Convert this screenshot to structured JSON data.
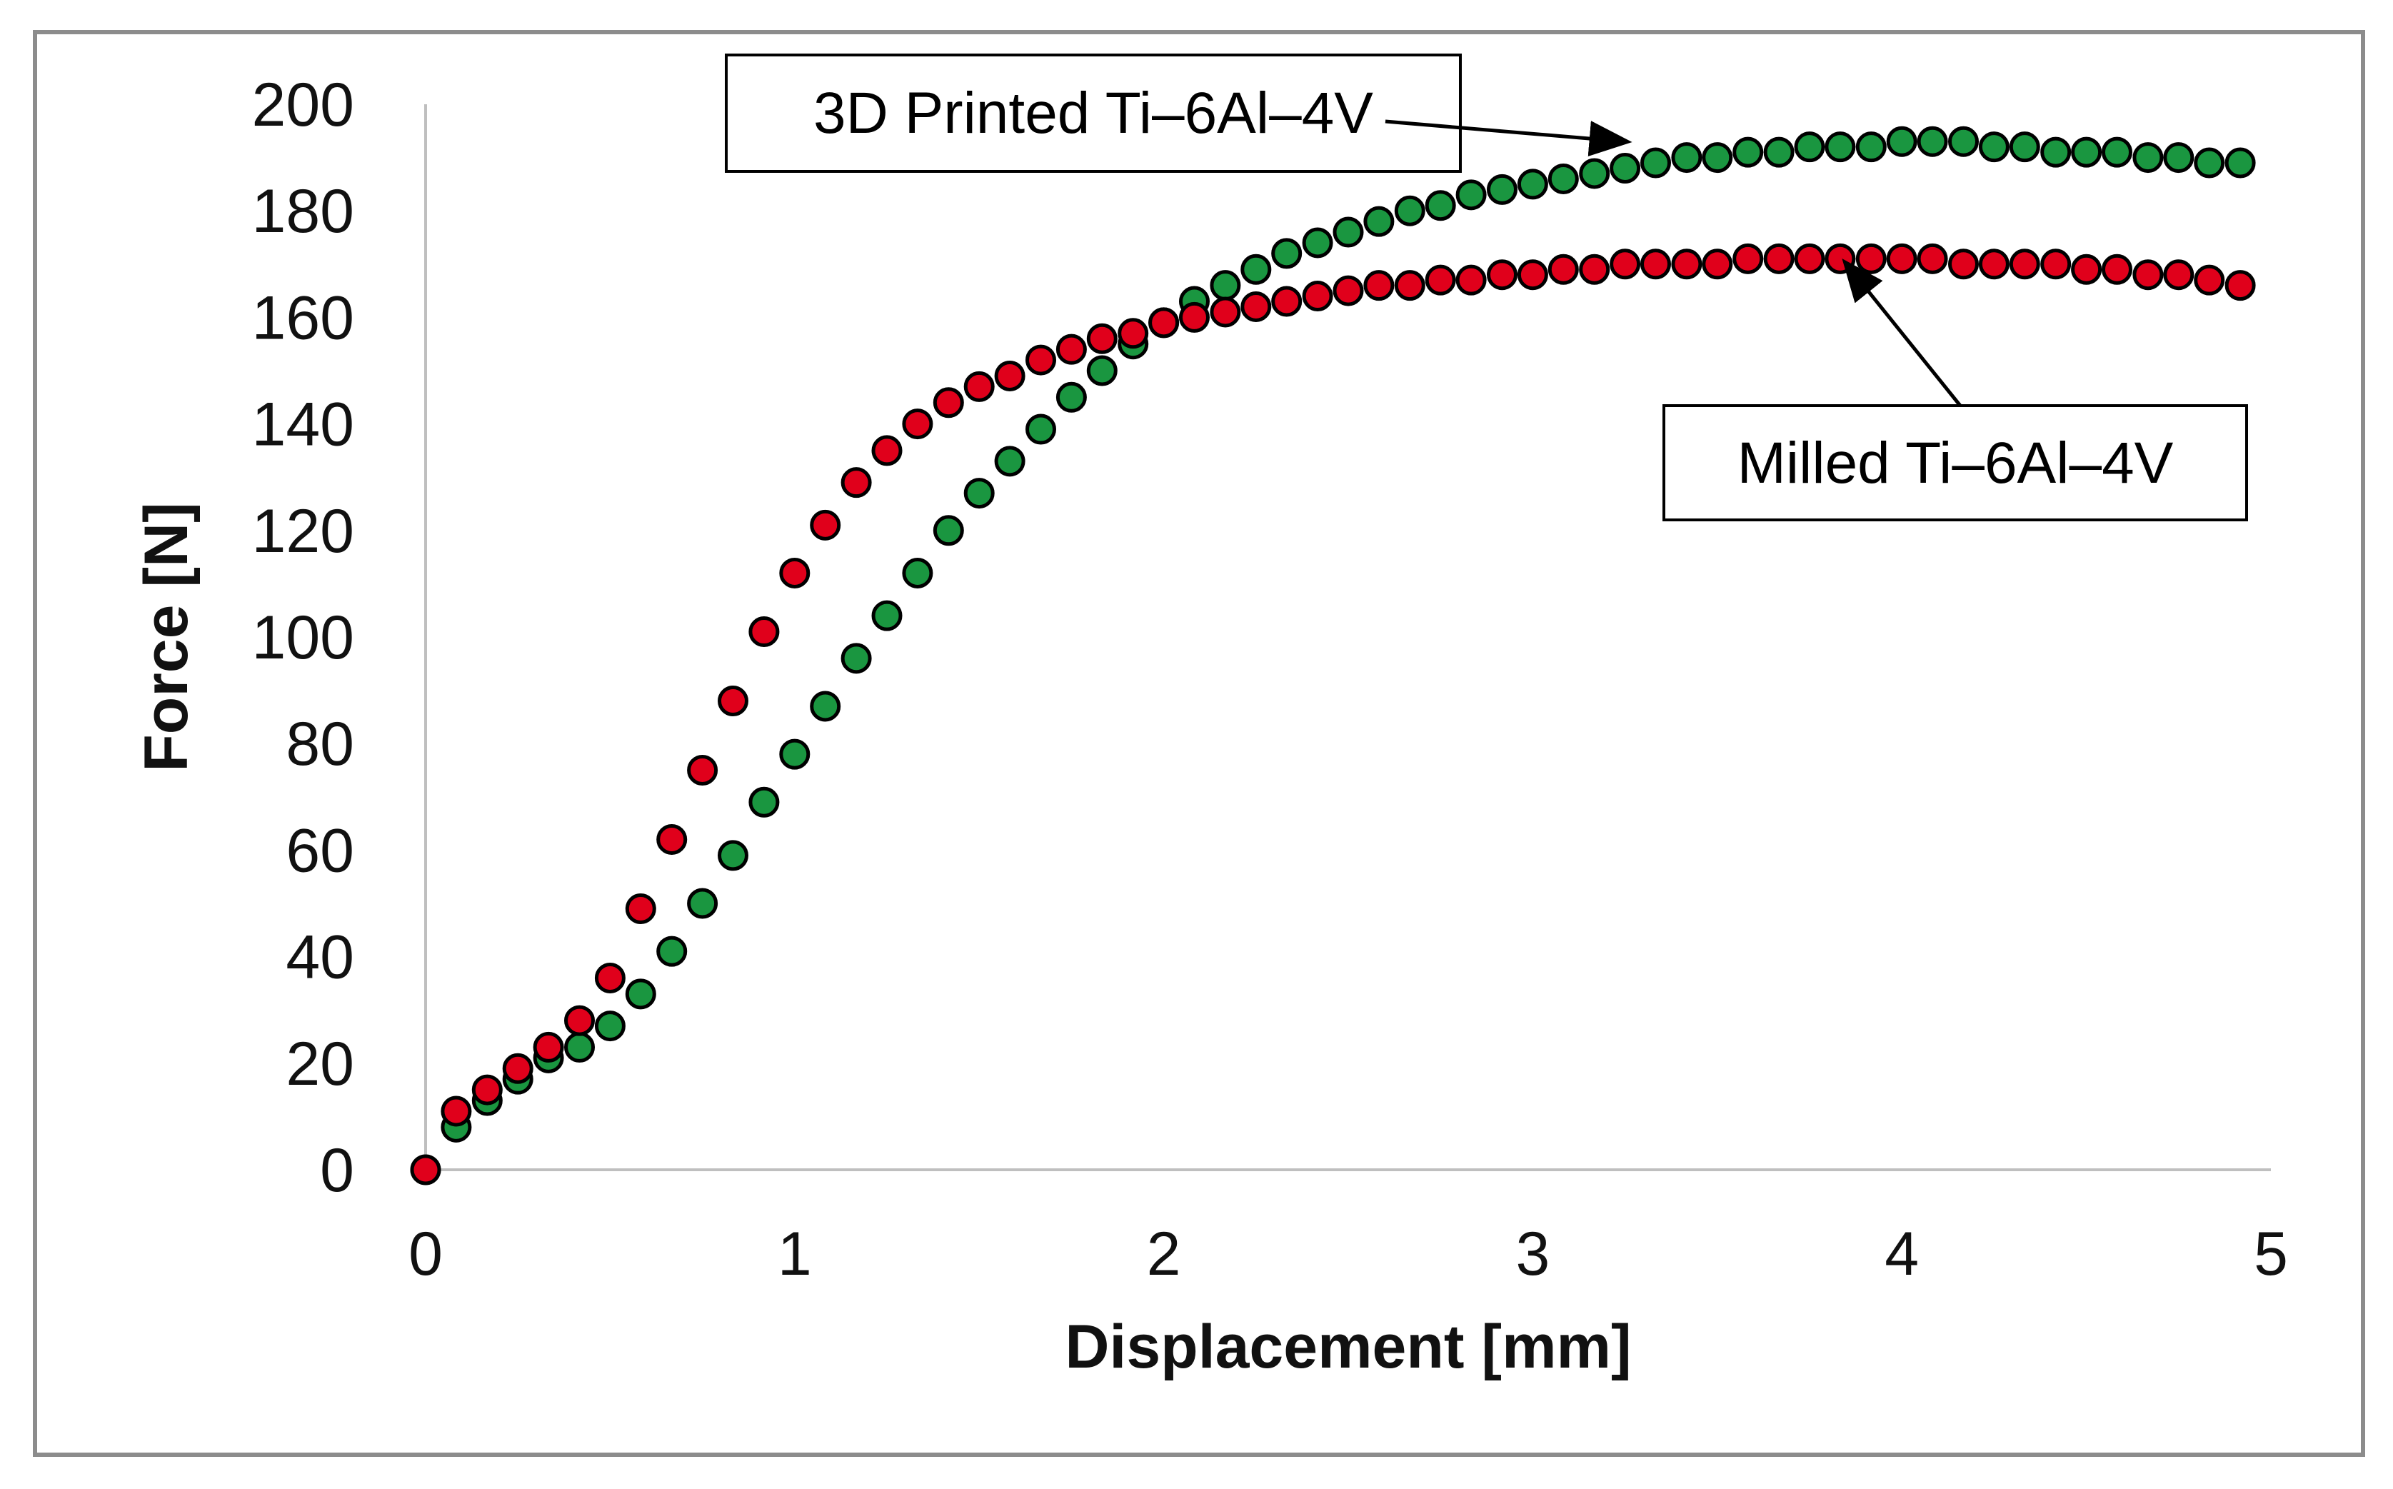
{
  "chart_data": {
    "type": "scatter",
    "title": "",
    "xlabel": "Displacement [mm]",
    "ylabel": "Force [N]",
    "xlim": [
      0,
      5
    ],
    "ylim": [
      0,
      200
    ],
    "xticks": [
      "0",
      "1",
      "2",
      "3",
      "4",
      "5"
    ],
    "yticks": [
      "0",
      "20",
      "40",
      "60",
      "80",
      "100",
      "120",
      "140",
      "160",
      "180",
      "200"
    ],
    "grid": false,
    "series": [
      {
        "name": "3D Printed Ti–6Al–4V",
        "color": "#1a9640",
        "x": [
          0,
          0.083,
          0.167,
          0.25,
          0.333,
          0.417,
          0.5,
          0.583,
          0.667,
          0.75,
          0.833,
          0.917,
          1.0,
          1.083,
          1.167,
          1.25,
          1.333,
          1.417,
          1.5,
          1.583,
          1.667,
          1.75,
          1.833,
          1.917,
          2.0,
          2.083,
          2.167,
          2.25,
          2.333,
          2.417,
          2.5,
          2.583,
          2.667,
          2.75,
          2.833,
          2.917,
          3.0,
          3.083,
          3.167,
          3.25,
          3.333,
          3.417,
          3.5,
          3.583,
          3.667,
          3.75,
          3.833,
          3.917,
          4.0,
          4.083,
          4.167,
          4.25,
          4.333,
          4.417,
          4.5,
          4.583,
          4.667,
          4.75,
          4.833,
          4.917
        ],
        "y": [
          0,
          8,
          13,
          17,
          21,
          23,
          27,
          33,
          41,
          50,
          59,
          69,
          78,
          87,
          96,
          104,
          112,
          120,
          127,
          133,
          139,
          145,
          150,
          155,
          159,
          163,
          166,
          169,
          172,
          174,
          176,
          178,
          180,
          181,
          183,
          184,
          185,
          186,
          187,
          188,
          189,
          190,
          190,
          191,
          191,
          192,
          192,
          192,
          193,
          193,
          193,
          192,
          192,
          191,
          191,
          191,
          190,
          190,
          189,
          189
        ]
      },
      {
        "name": "Milled Ti–6Al–4V",
        "color": "#e0001b",
        "x": [
          0,
          0.083,
          0.167,
          0.25,
          0.333,
          0.417,
          0.5,
          0.583,
          0.667,
          0.75,
          0.833,
          0.917,
          1.0,
          1.083,
          1.167,
          1.25,
          1.333,
          1.417,
          1.5,
          1.583,
          1.667,
          1.75,
          1.833,
          1.917,
          2.0,
          2.083,
          2.167,
          2.25,
          2.333,
          2.417,
          2.5,
          2.583,
          2.667,
          2.75,
          2.833,
          2.917,
          3.0,
          3.083,
          3.167,
          3.25,
          3.333,
          3.417,
          3.5,
          3.583,
          3.667,
          3.75,
          3.833,
          3.917,
          4.0,
          4.083,
          4.167,
          4.25,
          4.333,
          4.417,
          4.5,
          4.583,
          4.667,
          4.75,
          4.833,
          4.917
        ],
        "y": [
          0,
          11,
          15,
          19,
          23,
          28,
          36,
          49,
          62,
          75,
          88,
          101,
          112,
          121,
          129,
          135,
          140,
          144,
          147,
          149,
          152,
          154,
          156,
          157,
          159,
          160,
          161,
          162,
          163,
          164,
          165,
          166,
          166,
          167,
          167,
          168,
          168,
          169,
          169,
          170,
          170,
          170,
          170,
          171,
          171,
          171,
          171,
          171,
          171,
          171,
          170,
          170,
          170,
          170,
          169,
          169,
          168,
          168,
          167,
          166
        ]
      }
    ],
    "annotations": [
      {
        "text": "3D Printed Ti–6Al–4V",
        "series": 0,
        "arrow_to": [
          3.25,
          193
        ]
      },
      {
        "text": "Milled Ti–6Al–4V",
        "series": 1,
        "arrow_to": [
          3.85,
          170
        ]
      }
    ]
  }
}
